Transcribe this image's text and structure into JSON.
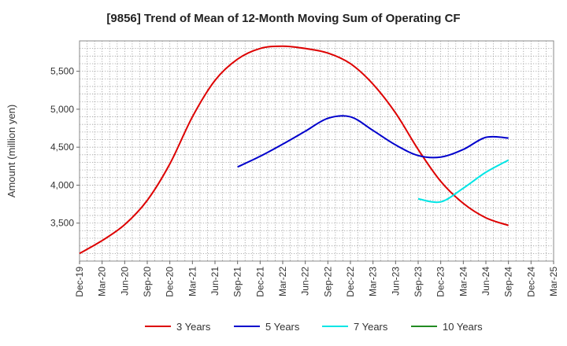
{
  "chart_data": {
    "type": "line",
    "title": "[9856]  Trend of Mean of 12-Month Moving Sum of Operating CF",
    "xlabel": "",
    "ylabel": "Amount (million yen)",
    "ylim": [
      3000,
      5900
    ],
    "yticks": [
      3500,
      4000,
      4500,
      5000,
      5500
    ],
    "ytick_labels": [
      "3,500",
      "4,000",
      "4,500",
      "5,000",
      "5,500"
    ],
    "x_start": "2019-12",
    "x_end": "2025-03",
    "xtick_labels": [
      "Dec-19",
      "Mar-20",
      "Jun-20",
      "Sep-20",
      "Dec-20",
      "Mar-21",
      "Jun-21",
      "Sep-21",
      "Dec-21",
      "Mar-22",
      "Jun-22",
      "Sep-22",
      "Dec-22",
      "Mar-23",
      "Jun-23",
      "Sep-23",
      "Dec-23",
      "Mar-24",
      "Jun-24",
      "Sep-24",
      "Dec-24",
      "Mar-25"
    ],
    "grid": true,
    "legend_position": "bottom",
    "series": [
      {
        "name": "3 Years",
        "color": "#dd0000",
        "x": [
          "2019-12",
          "2020-03",
          "2020-06",
          "2020-09",
          "2020-12",
          "2021-03",
          "2021-06",
          "2021-09",
          "2021-12",
          "2022-03",
          "2022-06",
          "2022-09",
          "2022-12",
          "2023-03",
          "2023-06",
          "2023-09",
          "2023-12",
          "2024-03",
          "2024-06",
          "2024-09"
        ],
        "values": [
          3100,
          3270,
          3480,
          3800,
          4280,
          4900,
          5380,
          5660,
          5800,
          5830,
          5800,
          5740,
          5600,
          5330,
          4950,
          4470,
          4050,
          3760,
          3570,
          3470
        ]
      },
      {
        "name": "5 Years",
        "color": "#0000cc",
        "x": [
          "2021-09",
          "2021-12",
          "2022-03",
          "2022-06",
          "2022-09",
          "2022-12",
          "2023-03",
          "2023-06",
          "2023-09",
          "2023-12",
          "2024-03",
          "2024-06",
          "2024-09"
        ],
        "values": [
          4240,
          4380,
          4540,
          4710,
          4880,
          4900,
          4720,
          4530,
          4390,
          4370,
          4470,
          4630,
          4620
        ]
      },
      {
        "name": "7 Years",
        "color": "#00e5e5",
        "x": [
          "2023-09",
          "2023-12",
          "2024-03",
          "2024-06",
          "2024-09"
        ],
        "values": [
          3820,
          3780,
          3960,
          4170,
          4330
        ]
      },
      {
        "name": "10 Years",
        "color": "#228b22",
        "x": [],
        "values": []
      }
    ]
  }
}
